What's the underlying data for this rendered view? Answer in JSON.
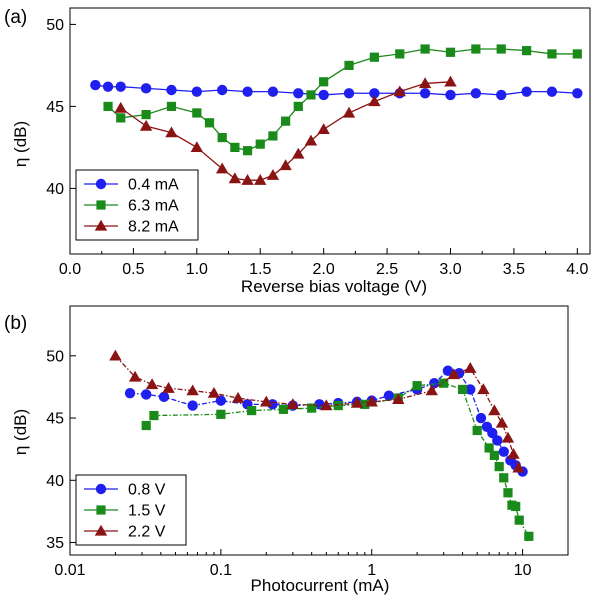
{
  "chart_data": [
    {
      "panel_label": "(a)",
      "type": "line",
      "xlabel": "Reverse bias voltage (V)",
      "ylabel": "η (dB)",
      "xlim": [
        0.0,
        4.1
      ],
      "ylim": [
        36,
        51
      ],
      "x_scale": "linear",
      "xticks": [
        0.0,
        0.5,
        1.0,
        1.5,
        2.0,
        2.5,
        3.0,
        3.5,
        4.0
      ],
      "xtick_labels": [
        "0.0",
        "0.5",
        "1.0",
        "1.5",
        "2.0",
        "2.5",
        "3.0",
        "3.5",
        "4.0"
      ],
      "yticks": [
        40,
        45,
        50
      ],
      "ytick_labels": [
        "40",
        "45",
        "50"
      ],
      "grid": false,
      "legend_position": "bottom-left",
      "series": [
        {
          "name": "0.4 mA",
          "color": "#1f1ff0",
          "marker": "circle",
          "x": [
            0.2,
            0.3,
            0.4,
            0.6,
            0.8,
            1.0,
            1.2,
            1.4,
            1.6,
            1.8,
            2.0,
            2.2,
            2.4,
            2.6,
            2.8,
            3.0,
            3.2,
            3.4,
            3.6,
            3.8,
            4.0
          ],
          "y": [
            46.3,
            46.2,
            46.2,
            46.1,
            46.0,
            45.9,
            46.0,
            45.9,
            45.9,
            45.8,
            45.7,
            45.8,
            45.8,
            45.8,
            45.8,
            45.7,
            45.8,
            45.7,
            45.9,
            45.9,
            45.8
          ]
        },
        {
          "name": "6.3 mA",
          "color": "#1a8a1a",
          "marker": "square",
          "x": [
            0.3,
            0.4,
            0.6,
            0.8,
            1.0,
            1.1,
            1.2,
            1.3,
            1.4,
            1.5,
            1.6,
            1.7,
            1.8,
            1.9,
            2.0,
            2.2,
            2.4,
            2.6,
            2.8,
            3.0,
            3.2,
            3.4,
            3.6,
            3.8,
            4.0
          ],
          "y": [
            45.0,
            44.3,
            44.5,
            45.0,
            44.6,
            44.0,
            43.1,
            42.5,
            42.3,
            42.7,
            43.2,
            44.1,
            45.0,
            45.7,
            46.5,
            47.5,
            48.0,
            48.2,
            48.5,
            48.3,
            48.5,
            48.5,
            48.4,
            48.2,
            48.2
          ]
        },
        {
          "name": "8.2 mA",
          "color": "#8a1414",
          "marker": "triangle",
          "x": [
            0.4,
            0.6,
            0.8,
            1.0,
            1.2,
            1.3,
            1.4,
            1.5,
            1.6,
            1.7,
            1.8,
            1.9,
            2.0,
            2.2,
            2.4,
            2.6,
            2.8,
            3.0
          ],
          "y": [
            44.9,
            43.8,
            43.4,
            42.5,
            41.2,
            40.6,
            40.5,
            40.5,
            40.8,
            41.4,
            42.1,
            42.9,
            43.6,
            44.6,
            45.3,
            45.9,
            46.4,
            46.5
          ]
        }
      ]
    },
    {
      "panel_label": "(b)",
      "type": "line",
      "xlabel": "Photocurrent (mA)",
      "ylabel": "η (dB)",
      "xlim": [
        0.01,
        20
      ],
      "ylim": [
        34,
        54
      ],
      "x_scale": "log",
      "xticks": [
        0.01,
        0.1,
        1,
        10
      ],
      "xtick_labels": [
        "0.01",
        "0.1",
        "1",
        "10"
      ],
      "yticks": [
        35,
        40,
        45,
        50
      ],
      "ytick_labels": [
        "35",
        "40",
        "45",
        "50"
      ],
      "grid": false,
      "legend_position": "bottom-left",
      "series": [
        {
          "name": "0.8 V",
          "color": "#1f1ff0",
          "marker": "circle",
          "x": [
            0.025,
            0.032,
            0.042,
            0.065,
            0.1,
            0.15,
            0.22,
            0.3,
            0.45,
            0.6,
            0.8,
            1.0,
            1.3,
            2.0,
            2.6,
            3.2,
            3.8,
            4.5,
            5.3,
            5.8,
            6.3,
            6.8,
            7.5,
            8.3,
            9.0,
            10.0
          ],
          "y": [
            47.0,
            46.9,
            46.7,
            46.0,
            46.4,
            46.1,
            46.1,
            46.0,
            46.1,
            46.2,
            46.3,
            46.4,
            46.8,
            47.3,
            47.8,
            48.8,
            48.6,
            47.3,
            45.0,
            44.3,
            43.8,
            43.2,
            42.3,
            41.6,
            41.2,
            40.7
          ]
        },
        {
          "name": "1.5 V",
          "color": "#1a8a1a",
          "marker": "square",
          "x": [
            0.032,
            0.036,
            0.1,
            0.16,
            0.26,
            0.4,
            0.6,
            0.9,
            1.5,
            2.0,
            3.0,
            4.0,
            5.0,
            6.0,
            6.5,
            7.0,
            7.5,
            8.0,
            8.5,
            9.0,
            9.5,
            11.0
          ],
          "y": [
            44.4,
            45.2,
            45.3,
            45.6,
            45.7,
            45.8,
            46.0,
            46.1,
            46.6,
            47.6,
            47.8,
            47.3,
            44.0,
            42.6,
            42.0,
            41.1,
            40.2,
            39.0,
            38.0,
            37.9,
            36.8,
            35.5
          ]
        },
        {
          "name": "2.2 V",
          "color": "#8a1414",
          "marker": "triangle",
          "x": [
            0.02,
            0.027,
            0.035,
            0.045,
            0.065,
            0.09,
            0.13,
            0.2,
            0.3,
            0.5,
            0.8,
            1.0,
            1.5,
            2.5,
            3.5,
            4.5,
            5.5,
            6.5,
            7.3,
            8.0,
            8.7,
            9.4
          ],
          "y": [
            50.0,
            48.3,
            47.7,
            47.4,
            47.2,
            47.0,
            46.6,
            46.3,
            46.1,
            46.0,
            46.2,
            46.3,
            46.5,
            47.2,
            48.5,
            49.0,
            47.3,
            45.6,
            44.6,
            43.4,
            42.1,
            41.0
          ]
        }
      ]
    }
  ]
}
